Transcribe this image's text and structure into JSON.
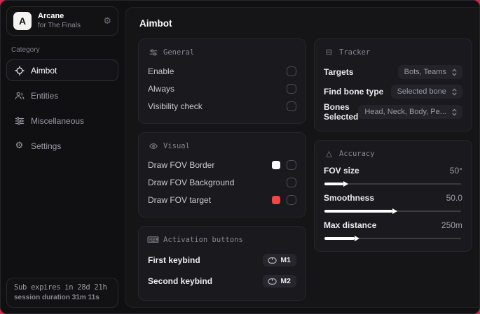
{
  "accent_color": "#d02a4d",
  "colors": {
    "fov_border_swatch": "#ffffff",
    "fov_target_swatch": "#ef4646"
  },
  "sidebar": {
    "brand": {
      "initial": "A",
      "name": "Arcane",
      "subtitle": "for The Finals"
    },
    "category_label": "Category",
    "items": [
      {
        "label": "Aimbot"
      },
      {
        "label": "Entities"
      },
      {
        "label": "Miscellaneous"
      },
      {
        "label": "Settings"
      }
    ],
    "subscription": {
      "expires": "Sub expires in 28d 21h",
      "session": "session duration 31m 11s"
    }
  },
  "main": {
    "title": "Aimbot",
    "general": {
      "title": "General",
      "rows": [
        {
          "label": "Enable"
        },
        {
          "label": "Always"
        },
        {
          "label": "Visibility check"
        }
      ]
    },
    "visual": {
      "title": "Visual",
      "rows": [
        {
          "label": "Draw FOV Border"
        },
        {
          "label": "Draw FOV Background"
        },
        {
          "label": "Draw FOV target"
        }
      ]
    },
    "activation": {
      "title": "Activation buttons",
      "rows": [
        {
          "label": "First keybind",
          "key": "M1"
        },
        {
          "label": "Second keybind",
          "key": "M2"
        }
      ]
    },
    "tracker": {
      "title": "Tracker",
      "rows": [
        {
          "label": "Targets",
          "value": "Bots, Teams"
        },
        {
          "label": "Find bone type",
          "value": "Selected bone"
        },
        {
          "label": "Bones Selected",
          "value": "Head, Neck, Body, Pe..."
        }
      ]
    },
    "accuracy": {
      "title": "Accuracy",
      "rows": [
        {
          "label": "FOV size",
          "value": "50°",
          "percent": 14
        },
        {
          "label": "Smoothness",
          "value": "50.0",
          "percent": 50
        },
        {
          "label": "Max distance",
          "value": "250m",
          "percent": 22
        }
      ]
    }
  }
}
